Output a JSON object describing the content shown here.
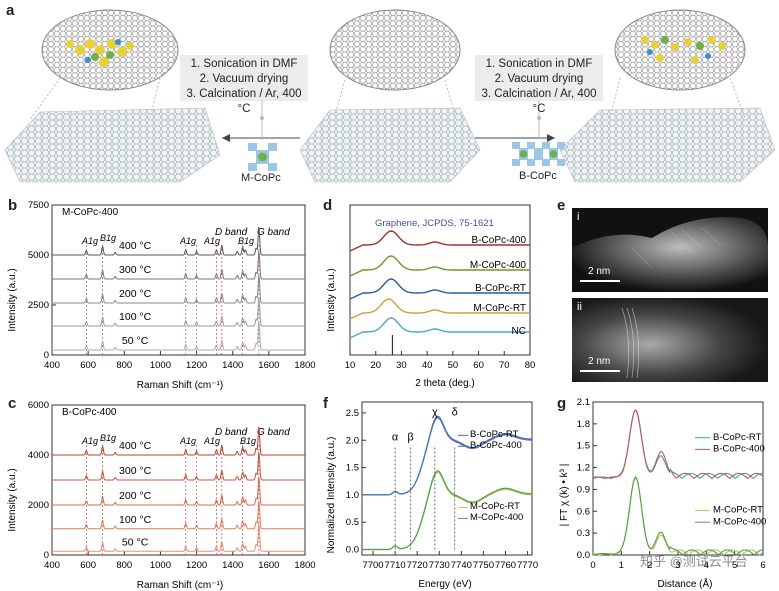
{
  "panel_a": {
    "label": "a",
    "steps_left": [
      "1. Sonication in DMF",
      "2. Vacuum drying",
      "3. Calcination / Ar, 400 °C"
    ],
    "steps_right": [
      "1. Sonication in DMF",
      "2. Vacuum drying",
      "3. Calcination / Ar, 400 °C"
    ],
    "left_molecule": "M-CoPc",
    "right_molecule": "B-CoPc"
  },
  "panel_b": {
    "label": "b",
    "sample": "M-CoPc-400",
    "ylabel": "Intensity (a.u.)",
    "xlabel": "Raman Shift (cm⁻¹)",
    "xticks": [
      "400",
      "600",
      "800",
      "1000",
      "1200",
      "1400",
      "1600",
      "1800"
    ],
    "yticks": [
      "0",
      "2500",
      "5000",
      "7500"
    ],
    "temps": [
      "400 °C",
      "300 °C",
      "200 °C",
      "100 °C",
      "50 °C"
    ],
    "bands": {
      "a1g": "A1g",
      "b1g": "B1g",
      "d": "D band",
      "g": "G band"
    }
  },
  "panel_c": {
    "label": "c",
    "sample": "B-CoPc-400",
    "ylabel": "Intensity (a.u.)",
    "xlabel": "Raman Shift (cm⁻¹)",
    "xticks": [
      "400",
      "600",
      "800",
      "1000",
      "1200",
      "1400",
      "1600",
      "1800"
    ],
    "yticks": [
      "0",
      "2000",
      "4000",
      "6000"
    ],
    "temps": [
      "400 °C",
      "300 °C",
      "200 °C",
      "100 °C",
      "50 °C"
    ],
    "bands": {
      "a1g": "A1g",
      "b1g": "B1g",
      "d": "D band",
      "g": "G band"
    }
  },
  "panel_d": {
    "label": "d",
    "ref": "Graphene, JCPDS, 75-1621",
    "ylabel": "Intensity (a.u.)",
    "xlabel": "2 theta (deg.)",
    "xticks": [
      "10",
      "20",
      "30",
      "40",
      "50",
      "60",
      "70",
      "80"
    ],
    "series": [
      "B-CoPc-400",
      "M-CoPc-400",
      "B-CoPc-RT",
      "M-CoPc-RT",
      "NC"
    ],
    "colors": [
      "#a0322e",
      "#6a9a2e",
      "#2c5aa0",
      "#c9a23a",
      "#4fa6c8"
    ]
  },
  "panel_e": {
    "label": "e",
    "sub1": "i",
    "sub2": "ii",
    "scale1": "2 nm",
    "scale2": "2 nm"
  },
  "panel_f": {
    "label": "f",
    "ylabel": "Normalized Intensity (a.u.)",
    "xlabel": "Energy (eV)",
    "xticks": [
      "7700",
      "7710",
      "7720",
      "7730",
      "7740",
      "7750",
      "7760",
      "7770"
    ],
    "yticks": [
      "0.0",
      "0.5",
      "1.0",
      "1.5",
      "2.0",
      "2.5"
    ],
    "markers": [
      "α",
      "β",
      "χ",
      "δ"
    ],
    "series_top": [
      "B-CoPc-RT",
      "B-CoPc-400"
    ],
    "series_bottom": [
      "M-CoPc-RT",
      "M-CoPc-400"
    ]
  },
  "panel_g": {
    "label": "g",
    "ylabel": "| FT χ (k) • k³ |",
    "xlabel": "Distance (Å)",
    "xticks": [
      "0",
      "1",
      "2",
      "3",
      "4",
      "5",
      "6"
    ],
    "yticks": [
      "0.0",
      "0.3",
      "0.6",
      "0.9",
      "1.2",
      "1.5",
      "1.8",
      "2.1"
    ],
    "series_top": [
      "B-CoPc-RT",
      "B-CoPc-400"
    ],
    "series_bottom": [
      "M-CoPc-RT",
      "M-CoPc-400"
    ]
  },
  "watermark": "知乎 @测试云平台",
  "chart_data": [
    {
      "type": "line",
      "title": "M-CoPc-400",
      "xlabel": "Raman Shift (cm⁻¹)",
      "ylabel": "Intensity (a.u.)",
      "xlim": [
        400,
        1800
      ],
      "ylim": [
        0,
        7500
      ],
      "series": [
        {
          "name": "400 °C",
          "baseline": 5000
        },
        {
          "name": "300 °C",
          "baseline": 3800
        },
        {
          "name": "200 °C",
          "baseline": 2600
        },
        {
          "name": "100 °C",
          "baseline": 1450
        },
        {
          "name": "50 °C",
          "baseline": 250
        }
      ],
      "peaks": [
        590,
        680,
        750,
        1140,
        1200,
        1310,
        1340,
        1425,
        1455,
        1470,
        1530,
        1545
      ]
    },
    {
      "type": "line",
      "title": "B-CoPc-400",
      "xlabel": "Raman Shift (cm⁻¹)",
      "ylabel": "Intensity (a.u.)",
      "xlim": [
        400,
        1800
      ],
      "ylim": [
        0,
        6000
      ],
      "series": [
        {
          "name": "400 °C",
          "baseline": 4000
        },
        {
          "name": "300 °C",
          "baseline": 3000
        },
        {
          "name": "200 °C",
          "baseline": 2000
        },
        {
          "name": "100 °C",
          "baseline": 1050
        },
        {
          "name": "50 °C",
          "baseline": 150
        }
      ],
      "peaks": [
        590,
        680,
        750,
        1140,
        1200,
        1310,
        1340,
        1425,
        1455,
        1470,
        1530,
        1545
      ]
    },
    {
      "type": "line",
      "xlabel": "2 theta (deg.)",
      "ylabel": "Intensity (a.u.)",
      "xlim": [
        10,
        80
      ],
      "series": [
        {
          "name": "B-CoPc-400",
          "peak": 26
        },
        {
          "name": "M-CoPc-400",
          "peak": 26
        },
        {
          "name": "B-CoPc-RT",
          "peak": 26
        },
        {
          "name": "M-CoPc-RT",
          "peak": 25
        },
        {
          "name": "NC",
          "peak": 26
        }
      ]
    },
    {
      "type": "line",
      "xlabel": "Energy (eV)",
      "ylabel": "Normalized Intensity (a.u.)",
      "xlim": [
        7695,
        7772
      ],
      "ylim": [
        -0.1,
        2.7
      ],
      "series": [
        {
          "name": "B-CoPc-RT",
          "offset": 1.0
        },
        {
          "name": "B-CoPc-400",
          "offset": 1.0
        },
        {
          "name": "M-CoPc-RT",
          "offset": 0.0
        },
        {
          "name": "M-CoPc-400",
          "offset": 0.0
        }
      ],
      "markers": [
        {
          "label": "α",
          "x": 7710
        },
        {
          "label": "β",
          "x": 7717
        },
        {
          "label": "χ",
          "x": 7728
        },
        {
          "label": "δ",
          "x": 7737
        }
      ]
    },
    {
      "type": "line",
      "xlabel": "Distance (Å)",
      "ylabel": "| FT χ (k) • k³ |",
      "xlim": [
        0,
        6
      ],
      "ylim": [
        0,
        2.1
      ],
      "series": [
        {
          "name": "B-CoPc-RT",
          "main_peak": [
            1.5,
            1.97
          ]
        },
        {
          "name": "B-CoPc-400",
          "main_peak": [
            1.5,
            1.97
          ]
        },
        {
          "name": "M-CoPc-RT",
          "main_peak": [
            1.5,
            1.05
          ]
        },
        {
          "name": "M-CoPc-400",
          "main_peak": [
            1.5,
            1.05
          ]
        }
      ]
    }
  ]
}
